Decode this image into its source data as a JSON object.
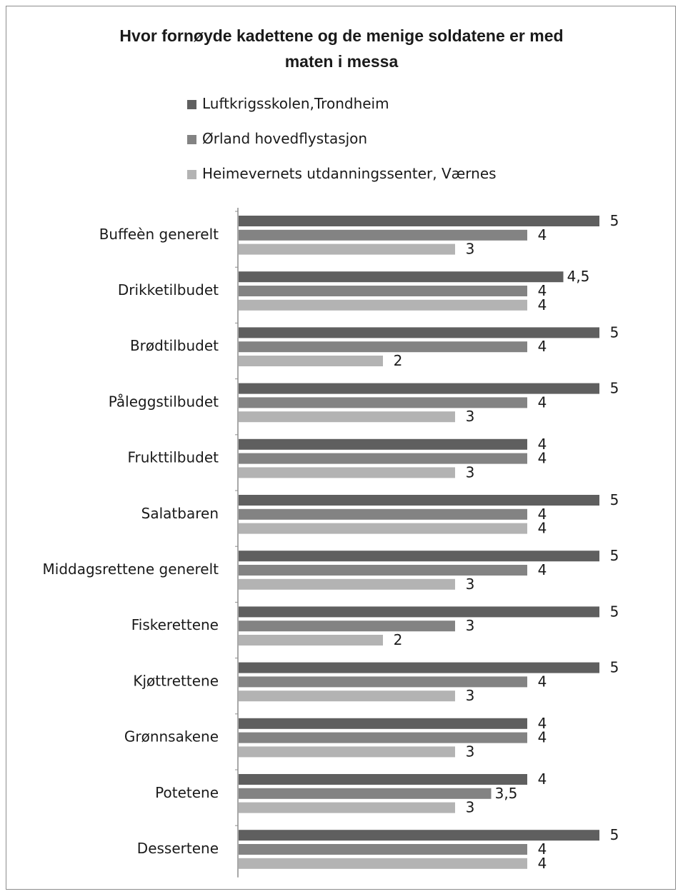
{
  "chart_data": {
    "type": "bar",
    "orientation": "horizontal",
    "title": "Hvor fornøyde kadettene og de menige soldatene er med maten i messa",
    "title_lines": [
      "Hvor fornøyde kadettene og de menige soldatene er med",
      "maten i messa"
    ],
    "legend_position": "top",
    "grid": false,
    "xlim": [
      0,
      5
    ],
    "categories": [
      "Buffeèn generelt",
      "Drikketilbudet",
      "Brødtilbudet",
      "Påleggstilbudet",
      "Frukttilbudet",
      "Salatbaren",
      "Middagsrettene generelt",
      "Fiskerettene",
      "Kjøttrettene",
      "Grønnsakene",
      "Potetene",
      "Dessertene"
    ],
    "series": [
      {
        "name": "Luftkrigsskolen,Trondheim",
        "color": "#5f5f5f",
        "values": [
          5,
          4.5,
          5,
          5,
          4,
          5,
          5,
          5,
          5,
          4,
          4,
          5
        ],
        "labels": [
          "5",
          "4,5",
          "5",
          "5",
          "4",
          "5",
          "5",
          "5",
          "5",
          "4",
          "4",
          "5"
        ]
      },
      {
        "name": "Ørland hovedflystasjon",
        "color": "#838383",
        "values": [
          4,
          4,
          4,
          4,
          4,
          4,
          4,
          3,
          4,
          4,
          3.5,
          4
        ],
        "labels": [
          "4",
          "4",
          "4",
          "4",
          "4",
          "4",
          "4",
          "3",
          "4",
          "4",
          "3,5",
          "4"
        ]
      },
      {
        "name": "Heimevernets utdanningssenter,  Værnes",
        "color": "#b3b3b3",
        "values": [
          3,
          4,
          2,
          3,
          3,
          4,
          3,
          2,
          3,
          3,
          3,
          4
        ],
        "labels": [
          "3",
          "4",
          "2",
          "3",
          "3",
          "4",
          "3",
          "2",
          "3",
          "3",
          "3",
          "4"
        ]
      }
    ]
  }
}
